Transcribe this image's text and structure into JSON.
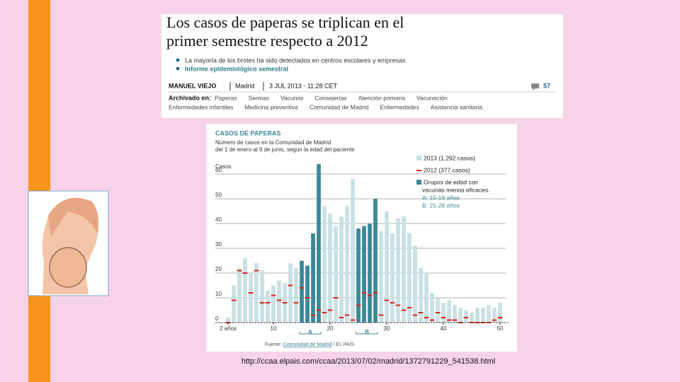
{
  "article": {
    "headline": [
      "Los casos de paperas se triplican en el",
      "primer semestre respecto a 2012"
    ],
    "bullets": [
      "La mayoría de los brotes ha sido detectados en centros escolares y empresas",
      "Informe epidemiológico semestral"
    ],
    "author": "MANUEL VIEJO",
    "place": "Madrid",
    "date": "3 JUL 2013 - 11:28 CET",
    "comments": "57",
    "archived_label": "Archivado en:",
    "tags": [
      [
        "Paperas",
        "Sermas",
        "Vacunas",
        "Consejerías",
        "Atención primaria",
        "Vacunación"
      ],
      [
        "Enfermedades infantiles",
        "Medicina preventiva",
        "Comunidad de Madrid",
        "Enfermedades",
        "Asistencia sanitaria"
      ]
    ]
  },
  "chart_data": {
    "type": "bar",
    "title": "CASOS DE PAPERAS",
    "subtitle": [
      "Número de casos en la Comunidad de Madrid",
      "del 1 de enero al 9 de junio, según la edad del paciente"
    ],
    "y_label": "Casos",
    "source_prefix": "Fuente: ",
    "source_link": "Comunidad de Madrid",
    "source_suffix": " / EL PAÍS",
    "x": [
      2,
      3,
      4,
      5,
      6,
      7,
      8,
      9,
      10,
      11,
      12,
      13,
      14,
      15,
      16,
      17,
      18,
      19,
      20,
      21,
      22,
      23,
      24,
      25,
      26,
      27,
      28,
      29,
      30,
      31,
      32,
      33,
      34,
      35,
      36,
      37,
      38,
      39,
      40,
      41,
      42,
      43,
      44,
      45,
      46,
      47,
      48,
      49,
      50
    ],
    "series": [
      {
        "name": "2013 (1.292 casos)",
        "color": "#c9e0e4",
        "mark": "bar",
        "values": [
          2,
          15,
          22,
          26,
          20,
          24,
          21,
          13,
          15,
          17,
          16,
          24,
          22,
          25,
          23,
          36,
          64,
          47,
          44,
          39,
          43,
          47,
          58,
          38,
          39,
          40,
          50,
          37,
          45,
          36,
          42,
          43,
          36,
          31,
          22,
          20,
          12,
          10,
          8,
          9,
          7,
          6,
          5,
          4,
          6,
          6,
          7,
          6,
          8
        ]
      },
      {
        "name": "2012 (377 casos)",
        "color": "#d8261c",
        "mark": "dash",
        "values": [
          0,
          9,
          21,
          20,
          12,
          21,
          8,
          8,
          11,
          9,
          8,
          15,
          8,
          14,
          10,
          3,
          5,
          4,
          5,
          10,
          2,
          3,
          1,
          7,
          12,
          11,
          12,
          3,
          9,
          8,
          7,
          5,
          6,
          3,
          4,
          2,
          1,
          4,
          2,
          1,
          1,
          0,
          2,
          0,
          0,
          0,
          0,
          1,
          2
        ]
      }
    ],
    "highlight": {
      "name_lines": [
        "Grupos de edad con",
        "vacunas menos eficaces."
      ],
      "color": "#3b8898",
      "ranges": [
        {
          "label": "A",
          "text": "A: 15-18 años",
          "from": 15,
          "to": 18
        },
        {
          "label": "B",
          "text": "B: 25-28 años",
          "from": 25,
          "to": 28
        }
      ]
    },
    "xlim": [
      1,
      51
    ],
    "xticks": [
      {
        "value": 2,
        "label": "2 años"
      },
      10,
      20,
      30,
      40,
      50
    ],
    "ylim": [
      0,
      60
    ],
    "yticks": [
      0,
      10,
      20,
      30,
      40,
      50,
      60
    ],
    "grid": true
  },
  "footer": {
    "url": "http://ccaa.elpais.com/ccaa/2013/07/02/madrid/1372791229_541538.html"
  }
}
